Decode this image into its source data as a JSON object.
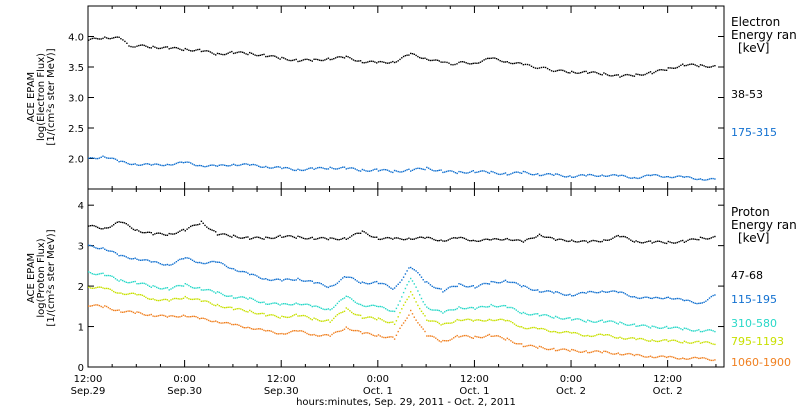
{
  "chart_data": [
    {
      "type": "scatter",
      "ylabel_lines": [
        "ACE EPAM",
        "log(Electron Flux)",
        "[1/(cm²s ster MeV)]"
      ],
      "ylim": [
        1.5,
        4.5
      ],
      "yticks": [
        2.0,
        2.5,
        3.0,
        3.5,
        4.0
      ],
      "ytick_labels": [
        "2.0",
        "2.5",
        "3.0",
        "3.5",
        "4.0"
      ],
      "xlim": [
        0,
        79
      ],
      "legend_title": [
        "Electron",
        "Energy ran",
        "[keV]"
      ],
      "series": [
        {
          "name": "38-53",
          "color": "#000000",
          "x": [
            0,
            2,
            4,
            5,
            6,
            8,
            10,
            12,
            14,
            16,
            18,
            20,
            22,
            24,
            26,
            28,
            30,
            32,
            34,
            36,
            38,
            40,
            42,
            44,
            45,
            46,
            48,
            50,
            52,
            54,
            55,
            56,
            57,
            58,
            60,
            62,
            64,
            66,
            68,
            70,
            72,
            74,
            76,
            78
          ],
          "y": [
            3.95,
            4.0,
            3.98,
            3.85,
            3.86,
            3.84,
            3.82,
            3.8,
            3.78,
            3.72,
            3.75,
            3.73,
            3.7,
            3.65,
            3.62,
            3.62,
            3.65,
            3.67,
            3.6,
            3.58,
            3.6,
            3.72,
            3.65,
            3.58,
            3.56,
            3.58,
            3.58,
            3.65,
            3.6,
            3.55,
            3.52,
            3.5,
            3.48,
            3.45,
            3.43,
            3.42,
            3.4,
            3.36,
            3.38,
            3.42,
            3.48,
            3.55,
            3.53,
            3.52
          ]
        },
        {
          "name": "175-315",
          "color": "#1170D0",
          "x": [
            0,
            2,
            4,
            6,
            8,
            10,
            12,
            14,
            16,
            18,
            20,
            22,
            24,
            26,
            28,
            30,
            32,
            34,
            36,
            38,
            40,
            42,
            44,
            46,
            48,
            50,
            52,
            54,
            56,
            58,
            60,
            62,
            64,
            66,
            68,
            70,
            72,
            74,
            76,
            78
          ],
          "y": [
            2.0,
            2.05,
            1.95,
            1.92,
            1.9,
            1.92,
            1.94,
            1.9,
            1.88,
            1.92,
            1.9,
            1.88,
            1.85,
            1.83,
            1.84,
            1.86,
            1.85,
            1.82,
            1.82,
            1.8,
            1.82,
            1.85,
            1.8,
            1.78,
            1.8,
            1.78,
            1.76,
            1.78,
            1.75,
            1.74,
            1.72,
            1.73,
            1.74,
            1.72,
            1.7,
            1.73,
            1.72,
            1.7,
            1.68,
            1.66
          ]
        }
      ]
    },
    {
      "type": "scatter",
      "ylabel_lines": [
        "ACE EPAM",
        "log(Proton Flux)",
        "[1/(cm²s ster MeV)]"
      ],
      "ylim": [
        0,
        4.4
      ],
      "yticks": [
        0,
        1,
        2,
        3,
        4
      ],
      "ytick_labels": [
        "0",
        "1",
        "2",
        "3",
        "4"
      ],
      "xlim": [
        0,
        79
      ],
      "legend_title": [
        "Proton",
        "Energy ran",
        "[keV]"
      ],
      "series": [
        {
          "name": "47-68",
          "color": "#000000",
          "x": [
            0,
            2,
            4,
            6,
            8,
            10,
            12,
            14,
            16,
            18,
            20,
            22,
            24,
            26,
            28,
            30,
            32,
            34,
            36,
            38,
            40,
            42,
            44,
            46,
            48,
            50,
            52,
            54,
            56,
            58,
            60,
            62,
            64,
            66,
            68,
            70,
            72,
            74,
            76,
            78
          ],
          "y": [
            3.5,
            3.45,
            3.6,
            3.4,
            3.3,
            3.3,
            3.4,
            3.6,
            3.3,
            3.25,
            3.2,
            3.2,
            3.25,
            3.22,
            3.2,
            3.18,
            3.2,
            3.35,
            3.2,
            3.18,
            3.2,
            3.2,
            3.15,
            3.2,
            3.15,
            3.15,
            3.2,
            3.1,
            3.3,
            3.15,
            3.15,
            3.1,
            3.15,
            3.25,
            3.12,
            3.1,
            3.1,
            3.12,
            3.2,
            3.22
          ]
        },
        {
          "name": "115-195",
          "color": "#1170D0",
          "x": [
            0,
            2,
            4,
            6,
            8,
            10,
            12,
            14,
            16,
            18,
            20,
            22,
            24,
            26,
            28,
            30,
            32,
            34,
            36,
            38,
            40,
            42,
            44,
            46,
            48,
            50,
            52,
            54,
            56,
            58,
            60,
            62,
            64,
            66,
            68,
            70,
            72,
            74,
            76,
            78
          ],
          "y": [
            3.0,
            2.95,
            2.75,
            2.7,
            2.6,
            2.55,
            2.7,
            2.6,
            2.6,
            2.45,
            2.3,
            2.2,
            2.15,
            2.2,
            2.1,
            2.0,
            2.25,
            2.1,
            2.1,
            1.95,
            2.5,
            2.1,
            1.9,
            2.05,
            2.0,
            2.1,
            2.15,
            2.0,
            1.9,
            1.85,
            1.8,
            1.85,
            1.9,
            1.85,
            1.75,
            1.7,
            1.75,
            1.65,
            1.6,
            1.8
          ]
        },
        {
          "name": "310-580",
          "color": "#28D8C8",
          "x": [
            0,
            2,
            4,
            6,
            8,
            10,
            12,
            14,
            16,
            18,
            20,
            22,
            24,
            26,
            28,
            30,
            32,
            34,
            36,
            38,
            40,
            42,
            44,
            46,
            48,
            50,
            52,
            54,
            56,
            58,
            60,
            62,
            64,
            66,
            68,
            70,
            72,
            74,
            76,
            78
          ],
          "y": [
            2.35,
            2.3,
            2.15,
            2.1,
            2.0,
            1.95,
            2.05,
            1.95,
            1.85,
            1.75,
            1.7,
            1.6,
            1.55,
            1.6,
            1.5,
            1.45,
            1.75,
            1.55,
            1.5,
            1.4,
            2.2,
            1.5,
            1.35,
            1.5,
            1.45,
            1.55,
            1.5,
            1.35,
            1.3,
            1.25,
            1.2,
            1.15,
            1.15,
            1.1,
            1.05,
            1.0,
            1.0,
            0.95,
            0.92,
            0.9
          ]
        },
        {
          "name": "795-1193",
          "color": "#C8E000",
          "x": [
            0,
            2,
            4,
            6,
            8,
            10,
            12,
            14,
            16,
            18,
            20,
            22,
            24,
            26,
            28,
            30,
            32,
            34,
            36,
            38,
            40,
            42,
            44,
            46,
            48,
            50,
            52,
            54,
            56,
            58,
            60,
            62,
            64,
            66,
            68,
            70,
            72,
            74,
            76,
            78
          ],
          "y": [
            2.0,
            1.95,
            1.85,
            1.8,
            1.7,
            1.65,
            1.75,
            1.65,
            1.55,
            1.45,
            1.4,
            1.3,
            1.25,
            1.3,
            1.2,
            1.15,
            1.45,
            1.25,
            1.2,
            1.1,
            1.85,
            1.2,
            1.05,
            1.2,
            1.15,
            1.2,
            1.15,
            1.0,
            0.95,
            0.9,
            0.85,
            0.8,
            0.8,
            0.75,
            0.7,
            0.68,
            0.66,
            0.64,
            0.62,
            0.6
          ]
        },
        {
          "name": "1060-1900",
          "color": "#F08020",
          "x": [
            0,
            2,
            4,
            6,
            8,
            10,
            12,
            14,
            16,
            18,
            20,
            22,
            24,
            26,
            28,
            30,
            32,
            34,
            36,
            38,
            40,
            42,
            44,
            46,
            48,
            50,
            52,
            54,
            56,
            58,
            60,
            62,
            64,
            66,
            68,
            70,
            72,
            74,
            76,
            78
          ],
          "y": [
            1.55,
            1.5,
            1.4,
            1.35,
            1.3,
            1.25,
            1.3,
            1.2,
            1.15,
            1.05,
            1.0,
            0.9,
            0.85,
            0.9,
            0.82,
            0.78,
            1.0,
            0.85,
            0.8,
            0.72,
            1.4,
            0.8,
            0.65,
            0.78,
            0.75,
            0.8,
            0.7,
            0.55,
            0.5,
            0.45,
            0.42,
            0.4,
            0.38,
            0.35,
            0.3,
            0.28,
            0.25,
            0.24,
            0.22,
            0.2
          ]
        }
      ]
    }
  ],
  "x_axis": {
    "ticks": [
      {
        "x": 0,
        "line1": "12:00",
        "line2": "Sep.29"
      },
      {
        "x": 12,
        "line1": "0:00",
        "line2": "Sep.30"
      },
      {
        "x": 24,
        "line1": "12:00",
        "line2": "Sep.30"
      },
      {
        "x": 36,
        "line1": "0:00",
        "line2": "Oct. 1"
      },
      {
        "x": 48,
        "line1": "12:00",
        "line2": "Oct. 1"
      },
      {
        "x": 60,
        "line1": "0:00",
        "line2": "Oct. 2"
      },
      {
        "x": 72,
        "line1": "12:00",
        "line2": "Oct. 2"
      }
    ],
    "title": "hours:minutes, Sep. 29, 2011 - Oct. 2, 2011"
  }
}
